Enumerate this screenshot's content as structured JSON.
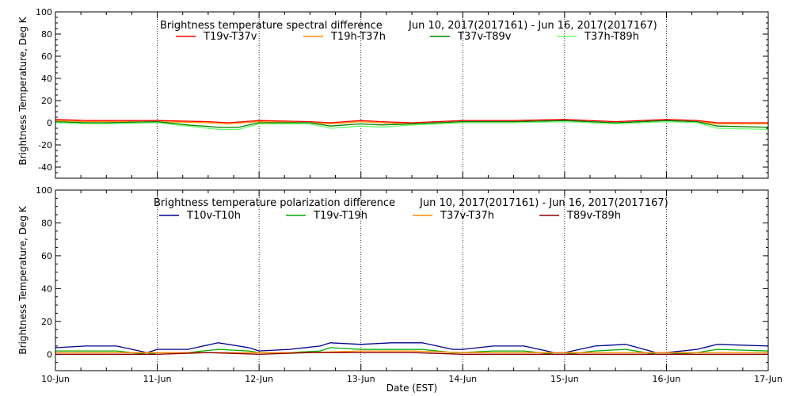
{
  "chart_data": [
    {
      "type": "line",
      "title_left": "Brightness temperature spectral difference",
      "title_right": "Jun 10, 2017(2017161) - Jun 16, 2017(2017167)",
      "ylabel": "Brightness Temperature, Deg K",
      "xlabel": "",
      "ylim": [
        -50,
        100
      ],
      "yticks": [
        -40,
        -20,
        0,
        20,
        40,
        60,
        80,
        100
      ],
      "xlim": [
        0,
        7
      ],
      "xticks": [
        0,
        1,
        2,
        3,
        4,
        5,
        6,
        7
      ],
      "grid": "vertical dotted",
      "legend_position": "top",
      "series": [
        {
          "name": "T19v-T37v",
          "color": "#ff0000",
          "x": [
            0,
            0.3,
            0.5,
            1.0,
            1.5,
            1.7,
            2.0,
            2.5,
            2.7,
            3.0,
            3.2,
            3.5,
            4.0,
            4.5,
            5.0,
            5.5,
            6.0,
            6.3,
            6.5,
            7.0
          ],
          "y": [
            3,
            2,
            2,
            2,
            1,
            0,
            2,
            1,
            0,
            2,
            1,
            0,
            2,
            2,
            3,
            1,
            3,
            2,
            0,
            0
          ]
        },
        {
          "name": "T19h-T37h",
          "color": "#ff8c00",
          "x": [
            0,
            0.3,
            0.5,
            1.0,
            1.5,
            1.7,
            2.0,
            2.5,
            2.7,
            3.0,
            3.2,
            3.5,
            4.0,
            4.5,
            5.0,
            5.5,
            6.0,
            6.3,
            6.5,
            7.0
          ],
          "y": [
            2,
            1,
            1,
            1,
            0,
            -1,
            1,
            0,
            -1,
            1,
            0,
            -1,
            1,
            1,
            2,
            0,
            2,
            1,
            -1,
            -1
          ]
        },
        {
          "name": "T37v-T89v",
          "color": "#008000",
          "x": [
            0,
            0.3,
            0.5,
            1.0,
            1.3,
            1.6,
            1.8,
            2.0,
            2.5,
            2.7,
            3.0,
            3.2,
            3.5,
            4.0,
            4.5,
            5.0,
            5.5,
            6.0,
            6.3,
            6.5,
            7.0
          ],
          "y": [
            1,
            0,
            0,
            1,
            -2,
            -4,
            -4,
            0,
            0,
            -3,
            -1,
            -2,
            -1,
            1,
            1,
            2,
            0,
            2,
            1,
            -3,
            -4
          ]
        },
        {
          "name": "T37h-T89h",
          "color": "#66ff66",
          "x": [
            0,
            0.3,
            0.5,
            1.0,
            1.3,
            1.6,
            1.8,
            2.0,
            2.5,
            2.7,
            3.0,
            3.2,
            3.5,
            4.0,
            4.5,
            5.0,
            5.5,
            6.0,
            6.3,
            6.5,
            7.0
          ],
          "y": [
            0,
            -1,
            -1,
            0,
            -3,
            -6,
            -6,
            -1,
            -1,
            -5,
            -3,
            -4,
            -2,
            0,
            0,
            1,
            -1,
            1,
            0,
            -5,
            -6
          ]
        }
      ]
    },
    {
      "type": "line",
      "title_left": "Brightness temperature polarization difference",
      "title_right": "Jun 10, 2017(2017161) - Jun 16, 2017(2017167)",
      "ylabel": "Brightness Temperature, Deg K",
      "xlabel": "Date (EST)",
      "ylim": [
        -10,
        100
      ],
      "yticks": [
        0,
        20,
        40,
        60,
        80,
        100
      ],
      "xlim": [
        0,
        7
      ],
      "xticks": [
        0,
        1,
        2,
        3,
        4,
        5,
        6,
        7
      ],
      "xticklabels": [
        "10-Jun",
        "11-Jun",
        "12-Jun",
        "13-Jun",
        "14-Jun",
        "15-Jun",
        "16-Jun",
        "17-Jun"
      ],
      "grid": "vertical dotted",
      "legend_position": "top",
      "series": [
        {
          "name": "T10v-T10h",
          "color": "#00008b",
          "x": [
            0,
            0.3,
            0.6,
            0.9,
            1.0,
            1.3,
            1.6,
            1.9,
            2.0,
            2.3,
            2.6,
            2.7,
            3.0,
            3.3,
            3.6,
            3.9,
            4.0,
            4.3,
            4.6,
            4.9,
            5.0,
            5.3,
            5.6,
            5.9,
            6.0,
            6.3,
            6.5,
            7.0
          ],
          "y": [
            4,
            5,
            5,
            1,
            3,
            3,
            7,
            4,
            2,
            3,
            5,
            7,
            6,
            7,
            7,
            3,
            3,
            5,
            5,
            1,
            1,
            5,
            6,
            1,
            1,
            3,
            6,
            5
          ]
        },
        {
          "name": "T19v-T19h",
          "color": "#00aa00",
          "x": [
            0,
            0.3,
            0.6,
            0.9,
            1.0,
            1.3,
            1.6,
            1.9,
            2.0,
            2.3,
            2.6,
            2.7,
            3.0,
            3.3,
            3.6,
            3.9,
            4.0,
            4.3,
            4.6,
            4.9,
            5.0,
            5.3,
            5.6,
            5.9,
            6.0,
            6.3,
            6.5,
            7.0
          ],
          "y": [
            2,
            2,
            2,
            0,
            1,
            1,
            3,
            2,
            1,
            1,
            2,
            4,
            3,
            3,
            3,
            1,
            1,
            2,
            2,
            0,
            0,
            2,
            3,
            0,
            0,
            1,
            3,
            2
          ]
        },
        {
          "name": "T37v-T37h",
          "color": "#ff8c00",
          "x": [
            0,
            0.5,
            1.0,
            1.5,
            2.0,
            2.5,
            3.0,
            3.5,
            4.0,
            4.5,
            5.0,
            5.5,
            6.0,
            6.5,
            7.0
          ],
          "y": [
            1,
            1,
            1,
            1,
            1,
            1,
            2,
            2,
            1,
            1,
            1,
            1,
            1,
            1,
            1
          ]
        },
        {
          "name": "T89v-T89h",
          "color": "#8b0000",
          "x": [
            0,
            0.5,
            1.0,
            1.5,
            2.0,
            2.5,
            3.0,
            3.5,
            4.0,
            4.5,
            5.0,
            5.5,
            6.0,
            6.5,
            7.0
          ],
          "y": [
            0,
            0,
            0,
            1,
            0,
            1,
            1,
            1,
            0,
            0,
            0,
            0,
            0,
            0,
            0
          ]
        }
      ]
    }
  ]
}
